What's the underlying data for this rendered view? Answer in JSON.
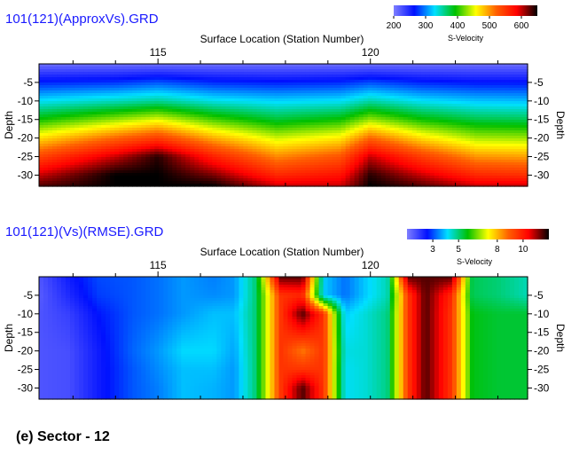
{
  "chart_data": [
    {
      "type": "heatmap",
      "title": "101(121)(ApproxVs).GRD",
      "xlabel": "Surface Location (Station Number)",
      "ylabel": "Depth",
      "x_ticks": [
        115,
        120
      ],
      "y_ticks": [
        -5,
        -10,
        -15,
        -20,
        -25,
        -30
      ],
      "xlim": [
        112.2,
        123.7
      ],
      "ylim": [
        -33,
        0
      ],
      "colorbar": {
        "label": "S-Velocity",
        "ticks": [
          200,
          300,
          400,
          500,
          600
        ],
        "range": [
          200,
          650
        ],
        "colors": [
          "#7f7fff",
          "#0010ff",
          "#00e0ff",
          "#00c000",
          "#ffff00",
          "#ff6000",
          "#ff0000",
          "#000000"
        ]
      },
      "field": {
        "x": [
          112.2,
          114.0,
          115.0,
          116.3,
          117.8,
          119.3,
          120.0,
          121.2,
          122.5,
          123.7
        ],
        "y": [
          0,
          -5,
          -10,
          -15,
          -20,
          -25,
          -30,
          -33
        ],
        "values": [
          [
            210,
            210,
            210,
            210,
            210,
            210,
            210,
            210,
            210,
            210
          ],
          [
            270,
            275,
            285,
            272,
            268,
            272,
            282,
            270,
            265,
            265
          ],
          [
            330,
            345,
            355,
            335,
            325,
            330,
            350,
            330,
            320,
            318
          ],
          [
            395,
            430,
            450,
            410,
            380,
            395,
            430,
            395,
            375,
            372
          ],
          [
            470,
            520,
            545,
            490,
            445,
            465,
            520,
            470,
            435,
            432
          ],
          [
            540,
            600,
            640,
            565,
            505,
            530,
            600,
            545,
            500,
            495
          ],
          [
            600,
            650,
            650,
            620,
            560,
            575,
            640,
            600,
            560,
            555
          ],
          [
            630,
            650,
            650,
            650,
            600,
            600,
            650,
            630,
            600,
            600
          ]
        ]
      }
    },
    {
      "type": "heatmap",
      "title": "101(121)(Vs)(RMSE).GRD",
      "xlabel": "Surface Location (Station Number)",
      "ylabel": "Depth",
      "x_ticks": [
        115,
        120
      ],
      "y_ticks": [
        -5,
        -10,
        -15,
        -20,
        -25,
        -30
      ],
      "xlim": [
        112.2,
        123.7
      ],
      "ylim": [
        -33,
        0
      ],
      "colorbar": {
        "label": "S-Velocity",
        "ticks": [
          3,
          5,
          8,
          10
        ],
        "range": [
          1,
          12
        ],
        "colors": [
          "#7f7fff",
          "#0010ff",
          "#00e0ff",
          "#00c000",
          "#ffff00",
          "#ff6000",
          "#ff0000",
          "#000000"
        ]
      },
      "field": {
        "x": [
          112.2,
          112.9,
          113.6,
          114.4,
          115.0,
          115.6,
          116.3,
          116.8,
          117.3,
          117.9,
          118.4,
          118.9,
          119.4,
          119.9,
          120.4,
          120.9,
          121.3,
          121.9,
          122.4,
          123.0,
          123.7
        ],
        "y": [
          0,
          -5,
          -10,
          -20,
          -25,
          -30,
          -33
        ],
        "values": [
          [
            1.6,
            2.4,
            3.0,
            3.1,
            3.3,
            3.6,
            3.4,
            3.6,
            5.0,
            11.5,
            11.5,
            4.0,
            3.3,
            4.0,
            4.6,
            11.5,
            11.5,
            11.5,
            5.2,
            5.0,
            4.6
          ],
          [
            1.5,
            2.2,
            2.9,
            3.1,
            3.3,
            3.6,
            3.5,
            3.6,
            5.0,
            9.6,
            9.8,
            4.0,
            3.3,
            4.0,
            4.6,
            9.6,
            11.5,
            9.8,
            5.2,
            5.0,
            4.6
          ],
          [
            1.6,
            1.9,
            2.6,
            3.1,
            3.3,
            3.6,
            3.9,
            3.9,
            5.0,
            9.6,
            11.5,
            9.6,
            4.0,
            4.4,
            4.9,
            9.6,
            11.5,
            9.6,
            5.6,
            5.4,
            5.4
          ],
          [
            1.6,
            1.7,
            2.4,
            3.2,
            3.6,
            4.1,
            4.1,
            3.7,
            5.0,
            9.6,
            8.6,
            9.6,
            4.3,
            4.4,
            4.9,
            9.6,
            11.5,
            9.6,
            5.6,
            5.4,
            5.4
          ],
          [
            1.6,
            1.7,
            2.4,
            3.1,
            3.5,
            3.9,
            3.9,
            3.6,
            5.0,
            9.6,
            9.6,
            9.6,
            4.2,
            4.4,
            4.9,
            9.6,
            11.5,
            9.6,
            5.6,
            5.4,
            5.4
          ],
          [
            1.6,
            1.7,
            2.4,
            3.1,
            3.4,
            3.9,
            3.8,
            3.6,
            5.0,
            9.6,
            11.5,
            9.6,
            4.2,
            4.4,
            4.9,
            9.6,
            11.5,
            9.6,
            5.6,
            5.4,
            5.4
          ],
          [
            1.6,
            1.7,
            2.4,
            3.1,
            3.4,
            3.9,
            3.8,
            3.6,
            5.0,
            9.6,
            11.5,
            9.6,
            4.2,
            4.4,
            4.9,
            9.6,
            11.5,
            9.6,
            5.6,
            5.4,
            5.4
          ]
        ]
      }
    }
  ],
  "caption": "(e) Sector - 12"
}
